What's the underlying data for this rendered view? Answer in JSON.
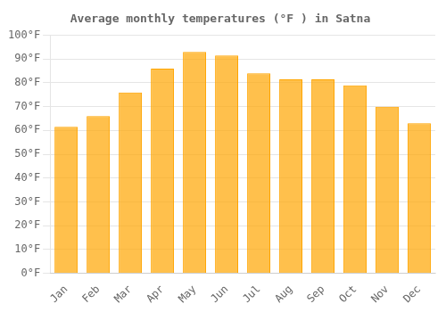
{
  "chart_data": {
    "type": "bar",
    "title": "Average monthly temperatures (°F ) in Satna",
    "categories": [
      "Jan",
      "Feb",
      "Mar",
      "Apr",
      "May",
      "Jun",
      "Jul",
      "Aug",
      "Sep",
      "Oct",
      "Nov",
      "Dec"
    ],
    "values": [
      61.5,
      66,
      76,
      86,
      93,
      91.5,
      84,
      81.5,
      81.5,
      79,
      70,
      63
    ],
    "color": "#FFA500",
    "ylim": [
      0,
      100
    ],
    "yticks": [
      {
        "value": 0,
        "label": "0°F"
      },
      {
        "value": 10,
        "label": "10°F"
      },
      {
        "value": 20,
        "label": "20°F"
      },
      {
        "value": 30,
        "label": "30°F"
      },
      {
        "value": 40,
        "label": "40°F"
      },
      {
        "value": 50,
        "label": "50°F"
      },
      {
        "value": 60,
        "label": "60°F"
      },
      {
        "value": 70,
        "label": "70°F"
      },
      {
        "value": 80,
        "label": "80°F"
      },
      {
        "value": 90,
        "label": "90°F"
      },
      {
        "value": 100,
        "label": "100°F"
      }
    ],
    "grid": true
  }
}
